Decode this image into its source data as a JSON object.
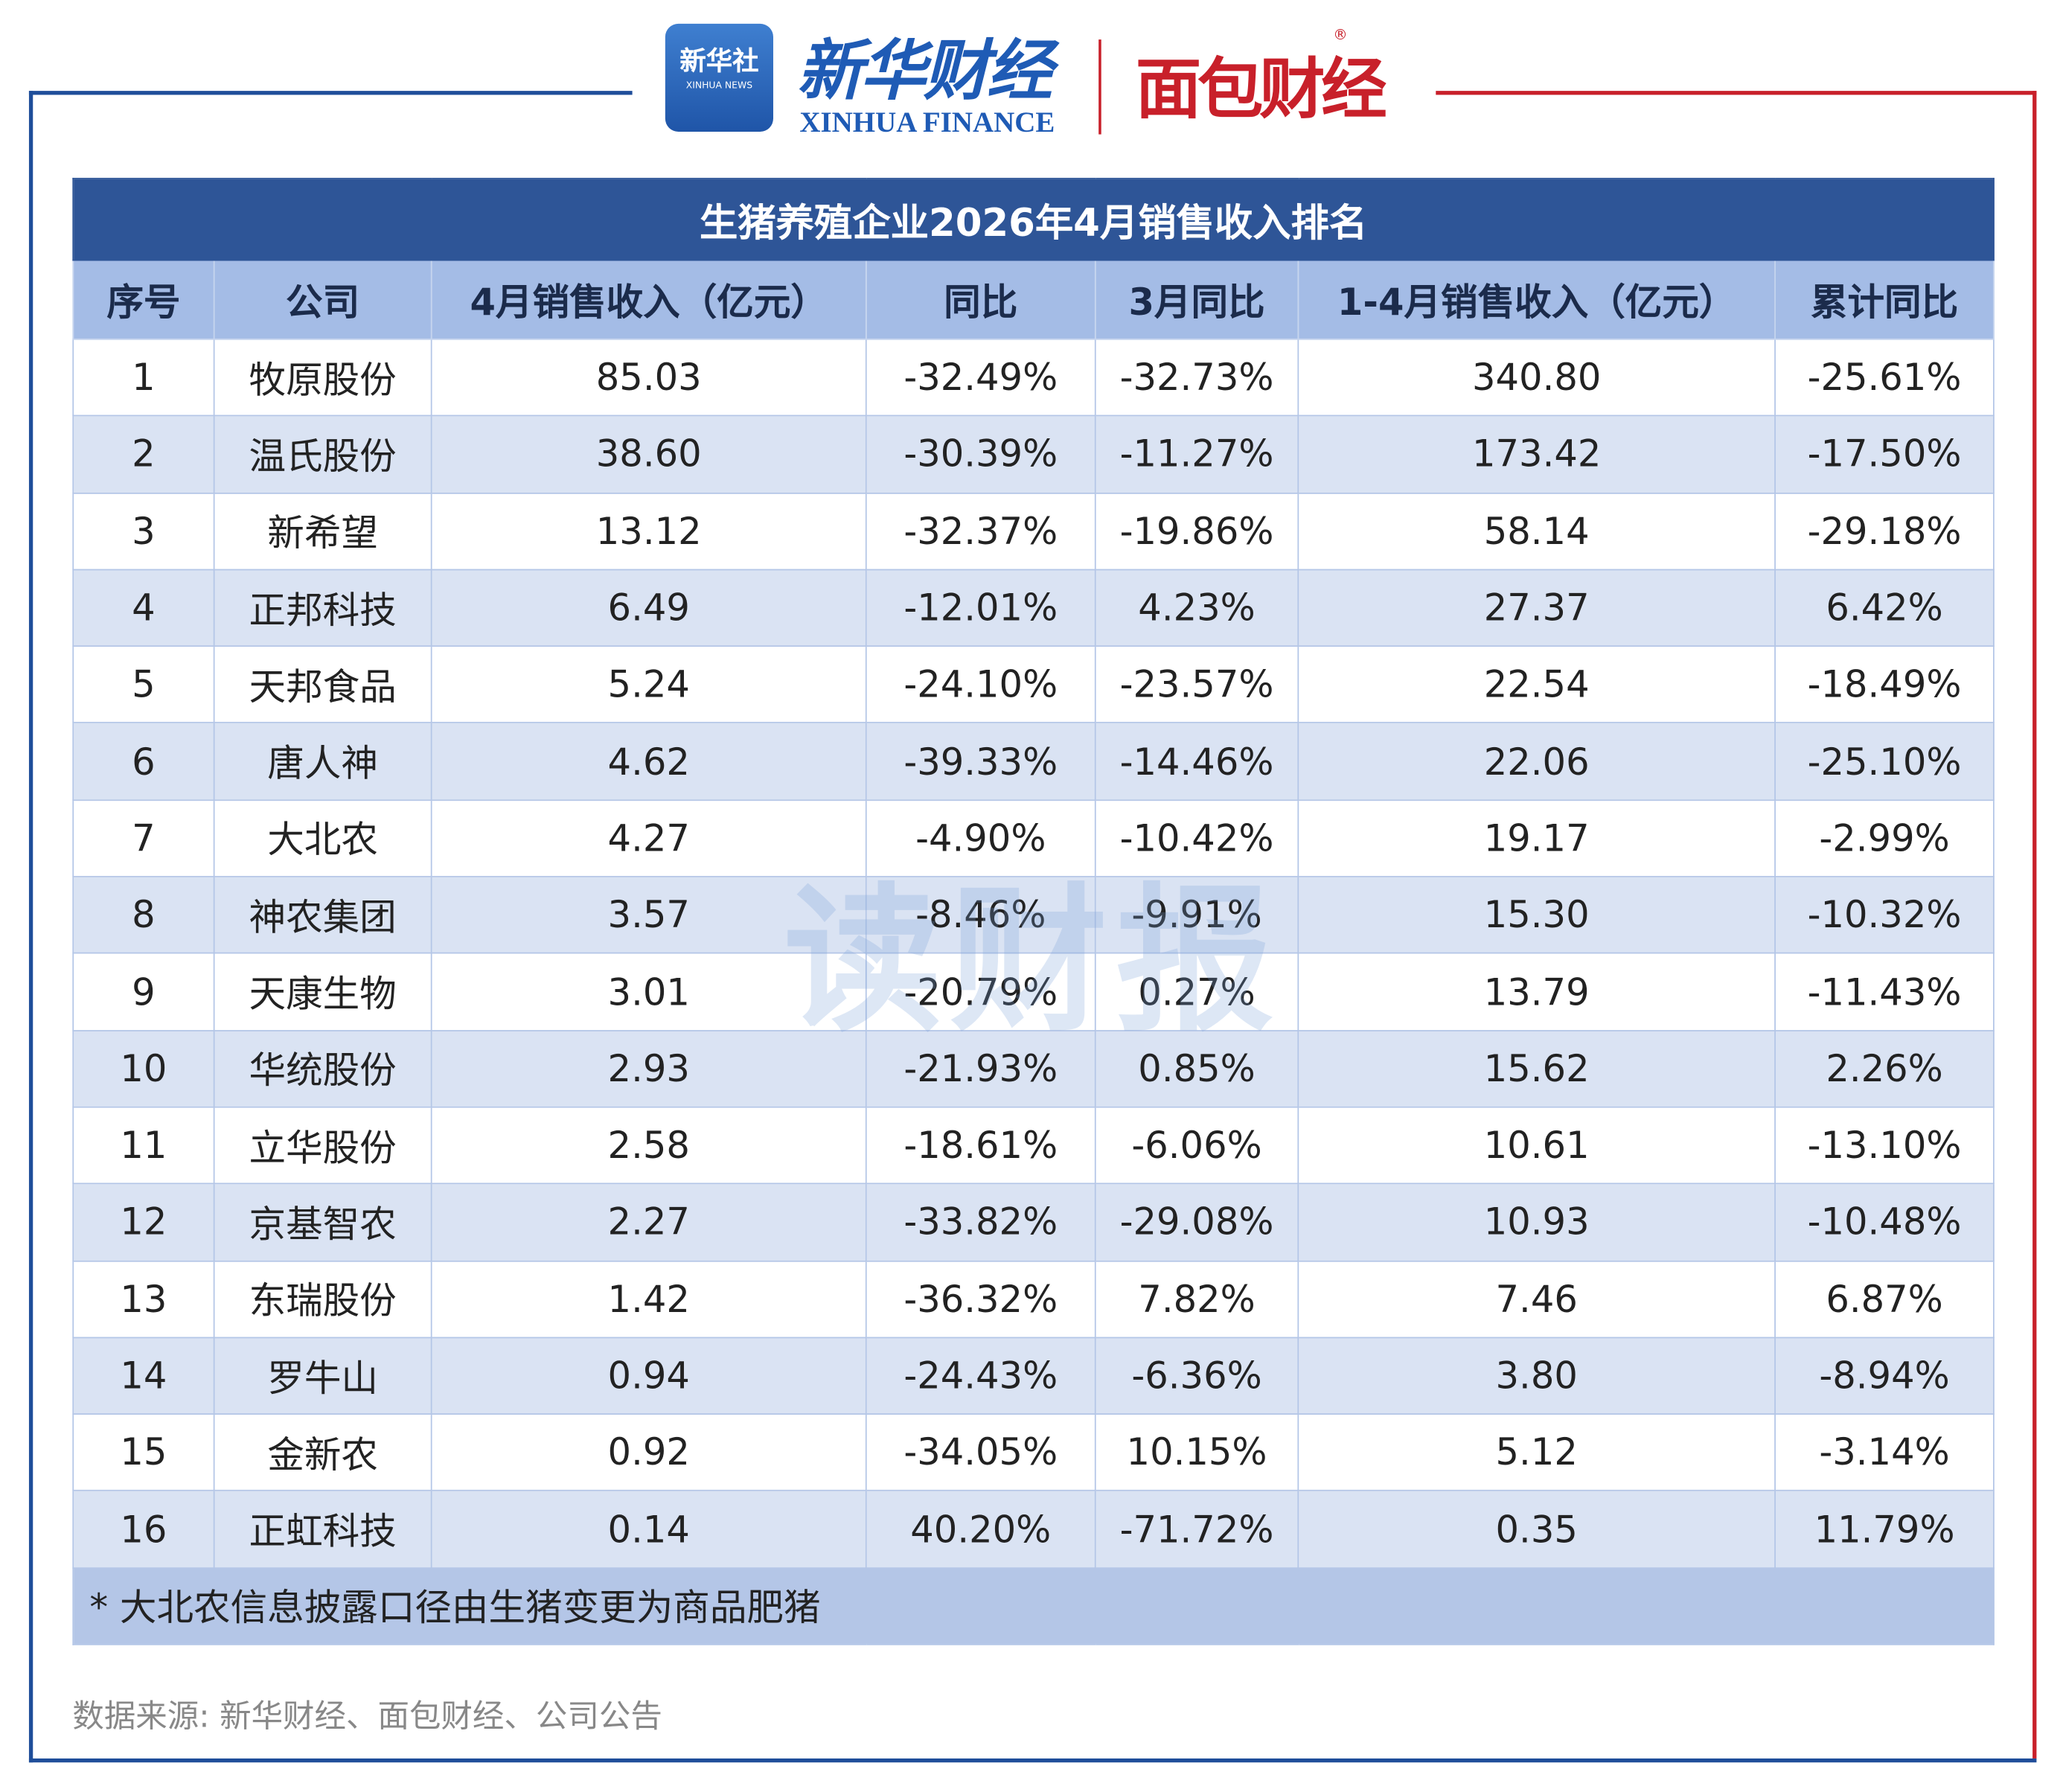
{
  "header": {
    "xinhua_news_cn": "新华社",
    "xinhua_news_en": "XINHUA NEWS",
    "xinhua_finance_cn": "新华财经",
    "xinhua_finance_en": "XINHUA FINANCE",
    "mianbao": "面包财经",
    "registered": "®"
  },
  "table": {
    "title": "生猪养殖企业2026年4月销售收入排名",
    "columns": [
      "序号",
      "公司",
      "4月销售收入（亿元）",
      "同比",
      "3月同比",
      "1-4月销售收入（亿元）",
      "累计同比"
    ],
    "rows": [
      [
        "1",
        "牧原股份",
        "85.03",
        "-32.49%",
        "-32.73%",
        "340.80",
        "-25.61%"
      ],
      [
        "2",
        "温氏股份",
        "38.60",
        "-30.39%",
        "-11.27%",
        "173.42",
        "-17.50%"
      ],
      [
        "3",
        "新希望",
        "13.12",
        "-32.37%",
        "-19.86%",
        "58.14",
        "-29.18%"
      ],
      [
        "4",
        "正邦科技",
        "6.49",
        "-12.01%",
        "4.23%",
        "27.37",
        "6.42%"
      ],
      [
        "5",
        "天邦食品",
        "5.24",
        "-24.10%",
        "-23.57%",
        "22.54",
        "-18.49%"
      ],
      [
        "6",
        "唐人神",
        "4.62",
        "-39.33%",
        "-14.46%",
        "22.06",
        "-25.10%"
      ],
      [
        "7",
        "大北农",
        "4.27",
        "-4.90%",
        "-10.42%",
        "19.17",
        "-2.99%"
      ],
      [
        "8",
        "神农集团",
        "3.57",
        "-8.46%",
        "-9.91%",
        "15.30",
        "-10.32%"
      ],
      [
        "9",
        "天康生物",
        "3.01",
        "-20.79%",
        "0.27%",
        "13.79",
        "-11.43%"
      ],
      [
        "10",
        "华统股份",
        "2.93",
        "-21.93%",
        "0.85%",
        "15.62",
        "2.26%"
      ],
      [
        "11",
        "立华股份",
        "2.58",
        "-18.61%",
        "-6.06%",
        "10.61",
        "-13.10%"
      ],
      [
        "12",
        "京基智农",
        "2.27",
        "-33.82%",
        "-29.08%",
        "10.93",
        "-10.48%"
      ],
      [
        "13",
        "东瑞股份",
        "1.42",
        "-36.32%",
        "7.82%",
        "7.46",
        "6.87%"
      ],
      [
        "14",
        "罗牛山",
        "0.94",
        "-24.43%",
        "-6.36%",
        "3.80",
        "-8.94%"
      ],
      [
        "15",
        "金新农",
        "0.92",
        "-34.05%",
        "10.15%",
        "5.12",
        "-3.14%"
      ],
      [
        "16",
        "正虹科技",
        "0.14",
        "40.20%",
        "-71.72%",
        "0.35",
        "11.79%"
      ]
    ],
    "footnote": "* 大北农信息披露口径由生猪变更为商品肥猪"
  },
  "source": "数据来源: 新华财经、面包财经、公司公告",
  "watermark": "读财报"
}
